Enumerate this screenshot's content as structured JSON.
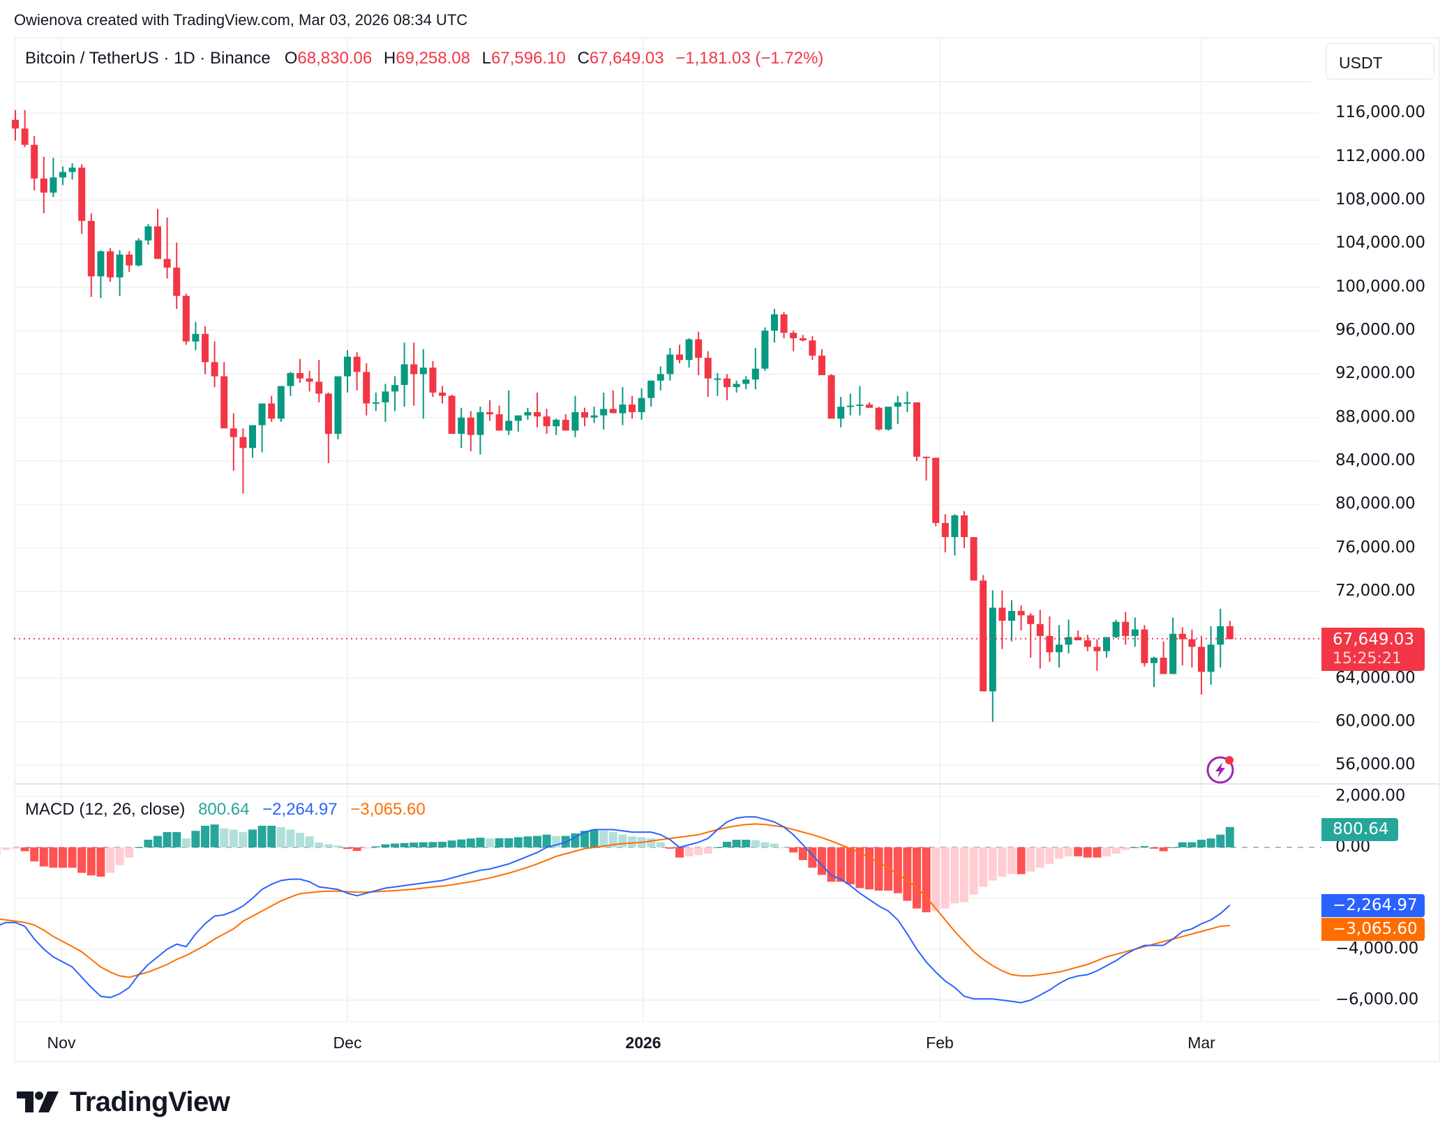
{
  "credit": "Owienova created with TradingView.com, Mar 03, 2026 08:34 UTC",
  "symbol": {
    "title": "Bitcoin / TetherUS · 1D · Binance",
    "open_label": "O",
    "open": "68,830.06",
    "high_label": "H",
    "high": "69,258.08",
    "low_label": "L",
    "low": "67,596.10",
    "close_label": "C",
    "close": "67,649.03",
    "change": "−1,181.03 (−1.72%)"
  },
  "currency": "USDT",
  "price_axis": {
    "labels": [
      "116,000.00",
      "112,000.00",
      "108,000.00",
      "104,000.00",
      "100,000.00",
      "96,000.00",
      "92,000.00",
      "88,000.00",
      "84,000.00",
      "80,000.00",
      "76,000.00",
      "72,000.00",
      "64,000.00",
      "60,000.00",
      "56,000.00"
    ],
    "values": [
      116000,
      112000,
      108000,
      104000,
      100000,
      96000,
      92000,
      88000,
      84000,
      80000,
      76000,
      72000,
      64000,
      60000,
      56000
    ]
  },
  "last_price": {
    "value": "67,649.03",
    "countdown": "15:25:21"
  },
  "macd": {
    "title": "MACD (12, 26, close)",
    "histogram": "800.64",
    "macd": "−2,264.97",
    "signal": "−3,065.60",
    "axis_labels": [
      "2,000.00",
      "0.00",
      "−4,000.00",
      "−6,000.00"
    ],
    "axis_values": [
      2000,
      0,
      -4000,
      -6000
    ]
  },
  "time_axis": [
    {
      "label": "Nov",
      "bold": false
    },
    {
      "label": "Dec",
      "bold": false
    },
    {
      "label": "2026",
      "bold": true
    },
    {
      "label": "Feb",
      "bold": false
    },
    {
      "label": "Mar",
      "bold": false
    }
  ],
  "brand": "TradingView",
  "colors": {
    "up": "#089981",
    "down": "#F23645",
    "hist_up_strong": "#26A69A",
    "hist_up_weak": "#B2DFDB",
    "hist_down_strong": "#FF5252",
    "hist_down_weak": "#FFCDD2",
    "macd_line": "#2962FF",
    "signal_line": "#FF6D00",
    "alert_icon": "#9C27B0"
  },
  "chart_data": [
    {
      "type": "candlestick",
      "title": "Bitcoin / TetherUS · 1D · Binance",
      "xlabel": "",
      "ylabel": "USDT",
      "x_range": [
        "2025-10-27",
        "2026-03-03"
      ],
      "ylim": [
        54000,
        119000
      ],
      "x_ticks": [
        "Nov",
        "Dec",
        "2026",
        "Feb",
        "Mar"
      ],
      "y_ticks": [
        56000,
        60000,
        64000,
        72000,
        76000,
        80000,
        84000,
        88000,
        92000,
        96000,
        100000,
        104000,
        108000,
        112000,
        116000
      ],
      "grid": true,
      "last_close": 67649.03,
      "ohlc": [
        [
          115.4,
          116.3,
          113.5,
          114.6
        ],
        [
          114.6,
          116.3,
          112.9,
          113.1
        ],
        [
          113.1,
          113.9,
          108.9,
          110.0
        ],
        [
          110.0,
          112.0,
          106.8,
          108.7
        ],
        [
          108.7,
          111.9,
          108.3,
          110.1
        ],
        [
          110.1,
          111.1,
          109.4,
          110.6
        ],
        [
          110.6,
          111.4,
          109.9,
          111.0
        ],
        [
          111.0,
          111.3,
          104.9,
          106.1
        ],
        [
          106.1,
          106.8,
          99.1,
          101.0
        ],
        [
          101.0,
          103.4,
          99.0,
          103.3
        ],
        [
          103.3,
          103.6,
          100.5,
          100.9
        ],
        [
          100.9,
          103.4,
          99.2,
          103.0
        ],
        [
          103.0,
          103.3,
          101.4,
          102.0
        ],
        [
          102.0,
          104.5,
          101.9,
          104.3
        ],
        [
          104.3,
          105.8,
          103.9,
          105.6
        ],
        [
          105.6,
          107.2,
          104.0,
          102.6
        ],
        [
          102.6,
          106.4,
          100.8,
          101.8
        ],
        [
          101.8,
          104.1,
          98.0,
          99.2
        ],
        [
          99.2,
          99.4,
          94.7,
          95.0
        ],
        [
          95.0,
          96.8,
          94.2,
          95.7
        ],
        [
          95.7,
          96.4,
          92.0,
          93.1
        ],
        [
          93.1,
          95.0,
          90.8,
          91.8
        ],
        [
          91.8,
          93.1,
          88.4,
          87.0
        ],
        [
          87.0,
          88.4,
          83.1,
          86.2
        ],
        [
          86.2,
          87.0,
          81.0,
          85.2
        ],
        [
          85.2,
          87.1,
          84.3,
          87.3
        ],
        [
          87.3,
          88.6,
          84.8,
          89.3
        ],
        [
          89.3,
          90.0,
          87.6,
          87.9
        ],
        [
          87.9,
          90.9,
          87.6,
          90.9
        ],
        [
          90.9,
          92.2,
          90.0,
          92.1
        ],
        [
          92.1,
          93.4,
          91.2,
          91.6
        ],
        [
          91.6,
          92.3,
          90.4,
          91.3
        ],
        [
          91.3,
          93.3,
          89.4,
          90.2
        ],
        [
          90.2,
          90.3,
          83.8,
          86.5
        ],
        [
          86.5,
          91.8,
          86.0,
          91.8
        ],
        [
          91.8,
          94.2,
          90.3,
          93.6
        ],
        [
          93.6,
          94.0,
          90.5,
          92.2
        ],
        [
          92.2,
          93.0,
          88.2,
          89.3
        ],
        [
          89.3,
          90.3,
          88.6,
          89.4
        ],
        [
          89.4,
          91.1,
          87.6,
          90.4
        ],
        [
          90.4,
          91.8,
          88.6,
          91.0
        ],
        [
          91.0,
          94.9,
          89.0,
          92.9
        ],
        [
          92.9,
          94.9,
          89.1,
          92.0
        ],
        [
          92.0,
          94.3,
          87.9,
          92.6
        ],
        [
          92.6,
          93.2,
          89.9,
          90.3
        ],
        [
          90.3,
          90.9,
          89.3,
          90.0
        ],
        [
          90.0,
          90.1,
          86.8,
          86.5
        ],
        [
          86.5,
          88.9,
          85.2,
          88.0
        ],
        [
          88.0,
          88.6,
          84.9,
          86.4
        ],
        [
          86.4,
          89.0,
          84.6,
          88.5
        ],
        [
          88.5,
          89.6,
          87.7,
          88.3
        ],
        [
          88.3,
          89.1,
          86.9,
          86.8
        ],
        [
          86.8,
          90.5,
          86.4,
          87.7
        ],
        [
          87.7,
          87.9,
          86.7,
          88.2
        ],
        [
          88.2,
          88.9,
          87.8,
          88.5
        ],
        [
          88.5,
          90.3,
          87.1,
          88.1
        ],
        [
          88.1,
          88.8,
          86.5,
          87.2
        ],
        [
          87.2,
          87.9,
          86.4,
          87.8
        ],
        [
          87.8,
          88.3,
          87.1,
          86.8
        ],
        [
          86.8,
          90.0,
          86.2,
          88.5
        ],
        [
          88.5,
          88.9,
          87.2,
          88.0
        ],
        [
          88.0,
          89.0,
          87.5,
          88.2
        ],
        [
          88.2,
          90.3,
          86.9,
          88.8
        ],
        [
          88.8,
          90.5,
          88.7,
          88.4
        ],
        [
          88.4,
          90.8,
          87.3,
          89.2
        ],
        [
          89.2,
          90.0,
          87.9,
          88.5
        ],
        [
          88.5,
          90.7,
          87.8,
          89.8
        ],
        [
          89.8,
          91.0,
          89.0,
          91.4
        ],
        [
          91.4,
          92.7,
          90.5,
          92.0
        ],
        [
          92.0,
          94.4,
          91.4,
          93.8
        ],
        [
          93.8,
          94.7,
          93.0,
          93.3
        ],
        [
          93.3,
          95.3,
          92.6,
          95.2
        ],
        [
          95.2,
          95.9,
          91.9,
          93.5
        ],
        [
          93.5,
          94.1,
          89.9,
          91.6
        ],
        [
          91.6,
          92.1,
          90.0,
          91.6
        ],
        [
          91.6,
          92.0,
          89.6,
          90.8
        ],
        [
          90.8,
          91.4,
          90.3,
          91.1
        ],
        [
          91.1,
          91.8,
          90.6,
          91.5
        ],
        [
          91.5,
          94.4,
          90.6,
          92.5
        ],
        [
          92.5,
          96.3,
          92.3,
          96.0
        ],
        [
          96.0,
          98.0,
          94.9,
          97.5
        ],
        [
          97.5,
          97.7,
          95.3,
          95.8
        ],
        [
          95.8,
          96.0,
          94.1,
          95.3
        ],
        [
          95.3,
          95.6,
          95.0,
          95.1
        ],
        [
          95.1,
          95.5,
          93.3,
          93.7
        ],
        [
          93.7,
          94.3,
          92.1,
          91.9
        ],
        [
          91.9,
          92.0,
          88.1,
          87.9
        ],
        [
          87.9,
          89.9,
          87.1,
          89.0
        ],
        [
          89.0,
          90.2,
          88.2,
          89.1
        ],
        [
          89.1,
          90.9,
          88.2,
          89.2
        ],
        [
          89.2,
          89.4,
          88.9,
          88.9
        ],
        [
          88.9,
          89.0,
          86.8,
          86.9
        ],
        [
          86.9,
          89.0,
          86.8,
          89.0
        ],
        [
          89.0,
          90.0,
          87.4,
          89.4
        ],
        [
          89.4,
          90.4,
          88.5,
          89.4
        ],
        [
          89.4,
          89.4,
          84.0,
          84.4
        ],
        [
          84.4,
          84.4,
          82.2,
          84.3
        ],
        [
          84.3,
          84.3,
          78.0,
          78.3
        ],
        [
          78.3,
          79.1,
          75.6,
          77.0
        ],
        [
          77.0,
          79.1,
          75.3,
          79.0
        ],
        [
          79.0,
          79.4,
          76.0,
          77.0
        ],
        [
          77.0,
          76.8,
          73.2,
          73.0
        ],
        [
          73.0,
          73.5,
          62.9,
          62.8
        ],
        [
          62.8,
          72.1,
          60.0,
          70.5
        ],
        [
          70.5,
          72.1,
          66.7,
          69.3
        ],
        [
          69.3,
          71.2,
          67.4,
          70.2
        ],
        [
          70.2,
          70.7,
          68.4,
          69.8
        ],
        [
          69.8,
          70.0,
          65.9,
          69.0
        ],
        [
          69.0,
          70.3,
          64.9,
          67.9
        ],
        [
          67.9,
          69.7,
          65.5,
          66.4
        ],
        [
          66.4,
          68.9,
          65.0,
          67.1
        ],
        [
          67.1,
          69.4,
          66.3,
          67.8
        ],
        [
          67.8,
          68.4,
          67.7,
          67.5
        ],
        [
          67.5,
          68.0,
          66.5,
          66.9
        ],
        [
          66.9,
          67.6,
          64.7,
          66.5
        ],
        [
          66.5,
          67.5,
          65.9,
          67.8
        ],
        [
          67.8,
          69.4,
          67.7,
          69.2
        ],
        [
          69.2,
          70.1,
          67.1,
          67.9
        ],
        [
          67.9,
          69.6,
          66.9,
          68.5
        ],
        [
          68.5,
          68.9,
          65.1,
          65.4
        ],
        [
          65.4,
          66.0,
          63.2,
          65.9
        ],
        [
          65.9,
          67.4,
          65.1,
          64.4
        ],
        [
          64.4,
          69.6,
          64.4,
          68.1
        ],
        [
          68.1,
          68.7,
          65.2,
          67.6
        ],
        [
          67.6,
          68.5,
          65.0,
          66.9
        ],
        [
          66.9,
          67.9,
          62.5,
          64.6
        ],
        [
          64.6,
          68.8,
          63.4,
          67.1
        ],
        [
          67.1,
          70.4,
          65.0,
          68.8
        ],
        [
          68.8,
          69.3,
          67.6,
          67.6
        ]
      ]
    },
    {
      "type": "line+histogram",
      "title": "MACD (12, 26, close)",
      "ylim": [
        -6500,
        2300
      ],
      "y_ticks": [
        -6000,
        -4000,
        -2000,
        0,
        2000
      ],
      "series": [
        {
          "name": "MACD",
          "color": "#2962FF",
          "last": -2264.97
        },
        {
          "name": "Signal",
          "color": "#FF6D00",
          "last": -3065.6
        },
        {
          "name": "Histogram",
          "last": 800.64
        }
      ],
      "macd": [
        -1900,
        -1700,
        -1800,
        -1900,
        -1950,
        -1950,
        -1900,
        -2500,
        -2700,
        -3000,
        -3100,
        -3200,
        -3100,
        -2950,
        -2950,
        -3100,
        -3600,
        -4000,
        -4300,
        -4500,
        -4700,
        -5100,
        -5500,
        -5850,
        -5900,
        -5750,
        -5500,
        -5000,
        -4600,
        -4300,
        -4000,
        -3800,
        -3900,
        -3400,
        -3000,
        -2700,
        -2650,
        -2500,
        -2300,
        -2000,
        -1650,
        -1450,
        -1300,
        -1250,
        -1250,
        -1350,
        -1550,
        -1600,
        -1650,
        -1800,
        -1900,
        -1800,
        -1700,
        -1600,
        -1550,
        -1500,
        -1450,
        -1400,
        -1350,
        -1300,
        -1200,
        -1100,
        -1000,
        -900,
        -850,
        -750,
        -650,
        -500,
        -350,
        -200,
        0,
        100,
        200,
        400,
        600,
        700,
        700,
        700,
        650,
        600,
        600,
        600,
        500,
        300,
        0,
        100,
        200,
        350,
        700,
        1000,
        1150,
        1200,
        1200,
        1100,
        1000,
        800,
        500,
        100,
        -300,
        -700,
        -1100,
        -1250,
        -1500,
        -1800,
        -2050,
        -2300,
        -2500,
        -2850,
        -3400,
        -4000,
        -4500,
        -4900,
        -5250,
        -5500,
        -5850,
        -5950,
        -5950,
        -5950,
        -6000,
        -6050,
        -6100,
        -6000,
        -5800,
        -5600,
        -5350,
        -5150,
        -5050,
        -5000,
        -4850,
        -4650,
        -4450,
        -4200,
        -4000,
        -3850,
        -3850,
        -3850,
        -3600,
        -3300,
        -3200,
        -3000,
        -2850,
        -2600,
        -2265
      ],
      "signal": [
        -2300,
        -2200,
        -2100,
        -2050,
        -2000,
        -1980,
        -1970,
        -2050,
        -2200,
        -2400,
        -2550,
        -2700,
        -2800,
        -2850,
        -2900,
        -2950,
        -3050,
        -3250,
        -3500,
        -3700,
        -3900,
        -4100,
        -4400,
        -4700,
        -4900,
        -5050,
        -5100,
        -5000,
        -4900,
        -4750,
        -4600,
        -4400,
        -4250,
        -4050,
        -3850,
        -3600,
        -3400,
        -3200,
        -2900,
        -2700,
        -2500,
        -2300,
        -2100,
        -1950,
        -1820,
        -1780,
        -1740,
        -1720,
        -1720,
        -1740,
        -1760,
        -1760,
        -1740,
        -1720,
        -1700,
        -1670,
        -1640,
        -1600,
        -1560,
        -1520,
        -1470,
        -1410,
        -1350,
        -1280,
        -1200,
        -1110,
        -1010,
        -900,
        -780,
        -650,
        -500,
        -350,
        -250,
        -150,
        -50,
        0,
        50,
        100,
        150,
        170,
        200,
        250,
        300,
        350,
        400,
        450,
        500,
        600,
        700,
        780,
        850,
        900,
        920,
        900,
        850,
        800,
        700,
        600,
        500,
        380,
        250,
        100,
        -50,
        -200,
        -400,
        -600,
        -800,
        -1050,
        -1300,
        -1600,
        -1950,
        -2400,
        -2850,
        -3300,
        -3700,
        -4100,
        -4400,
        -4650,
        -4850,
        -5000,
        -5050,
        -5050,
        -5000,
        -4950,
        -4900,
        -4800,
        -4700,
        -4600,
        -4450,
        -4300,
        -4200,
        -4100,
        -4000,
        -3900,
        -3800,
        -3700,
        -3600,
        -3500,
        -3400,
        -3300,
        -3200,
        -3100,
        -3066
      ]
    }
  ]
}
